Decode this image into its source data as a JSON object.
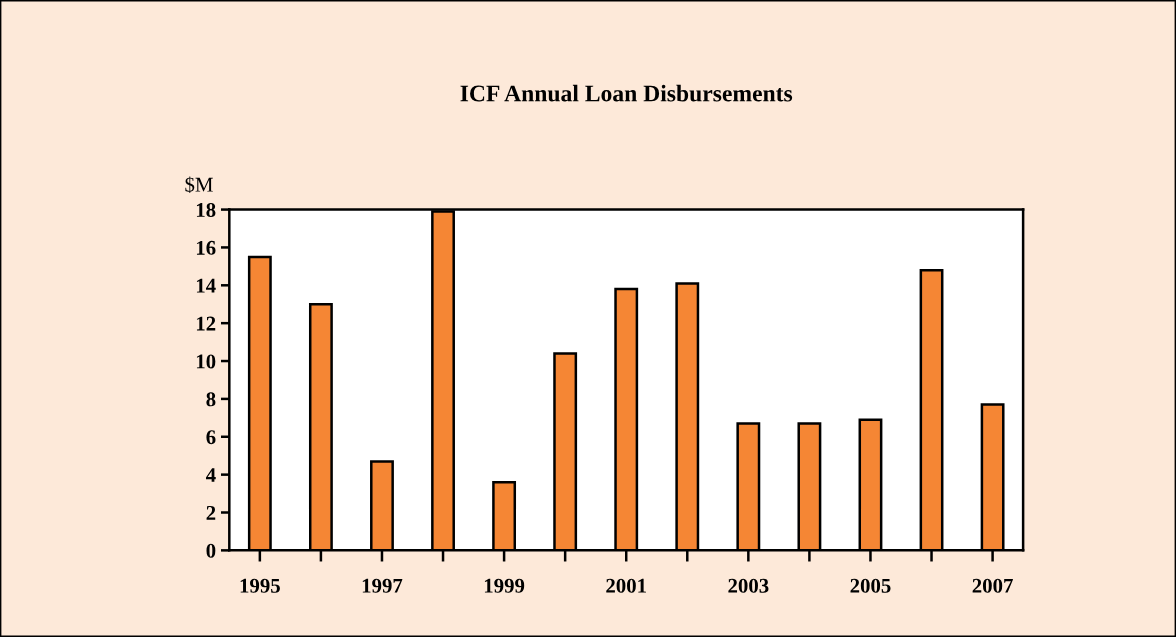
{
  "chart_data": {
    "type": "bar",
    "title": "ICF Annual Loan Disbursements",
    "ylabel": "$M",
    "categories": [
      "1995",
      null,
      "1997",
      null,
      "1999",
      null,
      "2001",
      null,
      "2003",
      null,
      "2005",
      null,
      "2007"
    ],
    "values": [
      15.5,
      13.0,
      4.7,
      17.9,
      3.6,
      10.4,
      13.8,
      14.1,
      6.7,
      6.7,
      6.9,
      14.8,
      7.7
    ],
    "color": "#f58634",
    "ylim": [
      0,
      18
    ],
    "yticks": [
      0,
      2,
      4,
      6,
      8,
      10,
      12,
      14,
      16,
      18
    ],
    "grid": false
  }
}
